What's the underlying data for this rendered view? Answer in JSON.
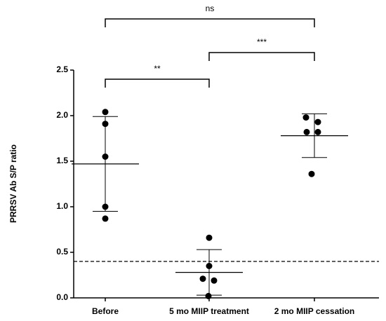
{
  "chart_data": {
    "type": "dot",
    "ylabel": "PRRSV Ab S/P ratio",
    "categories": [
      "Before",
      "5 mo MIIP treatment",
      "2 mo MIIP cessation"
    ],
    "points": [
      [
        2.04,
        1.91,
        1.55,
        1.0,
        0.87
      ],
      [
        0.66,
        0.35,
        0.21,
        0.19,
        0.02
      ],
      [
        1.98,
        1.93,
        1.82,
        1.82,
        1.36
      ]
    ],
    "means": [
      1.47,
      0.28,
      1.78
    ],
    "sd": [
      0.52,
      0.25,
      0.24
    ],
    "reference_line": 0.4,
    "ylim": [
      0,
      2.5
    ],
    "yticks": [
      {
        "value": 0,
        "label": "0.0"
      },
      {
        "value": 0.5,
        "label": "0.5"
      },
      {
        "value": 1,
        "label": "1.0"
      },
      {
        "value": 1.5,
        "label": "1.5"
      },
      {
        "value": 2,
        "label": "2.0"
      },
      {
        "value": 2.5,
        "label": "2.5"
      }
    ],
    "brackets": [
      {
        "from": 0,
        "to": 2,
        "label": "ns"
      },
      {
        "from": 1,
        "to": 2,
        "label": "***"
      },
      {
        "from": 0,
        "to": 1,
        "label": "**"
      }
    ]
  }
}
